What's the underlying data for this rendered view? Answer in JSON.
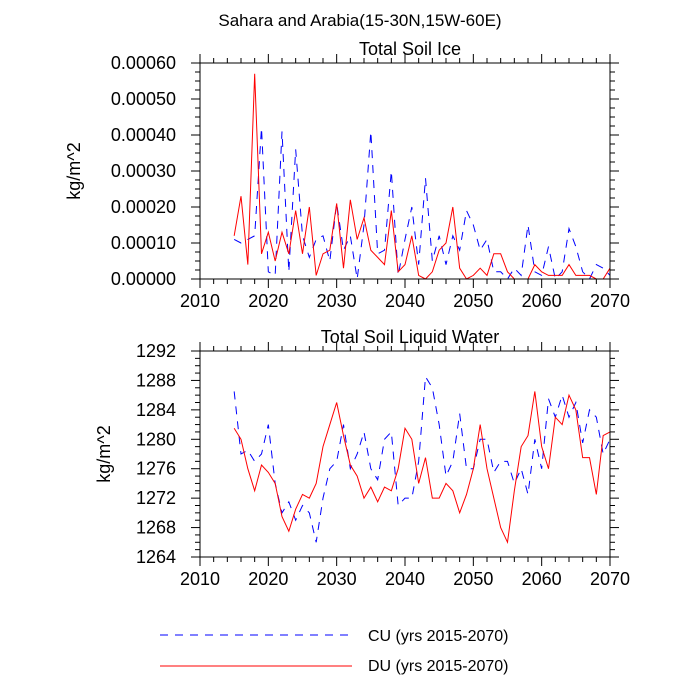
{
  "title": "Sahara and Arabia(15-30N,15W-60E)",
  "colors": {
    "CU": "#0000ff",
    "DU": "#ff0000",
    "axis": "#000000"
  },
  "legend": [
    {
      "key": "CU",
      "label": "CU (yrs 2015-2070)",
      "style": "dashed"
    },
    {
      "key": "DU",
      "label": "DU (yrs 2015-2070)",
      "style": "solid"
    }
  ],
  "chart_data": [
    {
      "type": "line",
      "title": "Total Soil Ice",
      "xlabel": "",
      "ylabel": "kg/m^2",
      "xlim": [
        2010,
        2070
      ],
      "ylim": [
        0,
        0.0006
      ],
      "xticks": [
        2010,
        2020,
        2030,
        2040,
        2050,
        2060,
        2070
      ],
      "xtick_labels": [
        "2010",
        "2020",
        "2030",
        "2040",
        "2050",
        "2060",
        "2070"
      ],
      "yticks": [
        0,
        0.0001,
        0.0002,
        0.0003,
        0.0004,
        0.0005,
        0.0006
      ],
      "ytick_labels": [
        "0.00000",
        "0.00010",
        "0.00020",
        "0.00030",
        "0.00040",
        "0.00050",
        "0.00060"
      ],
      "x": [
        2015,
        2016,
        2017,
        2018,
        2019,
        2020,
        2021,
        2022,
        2023,
        2024,
        2025,
        2026,
        2027,
        2028,
        2029,
        2030,
        2031,
        2032,
        2033,
        2034,
        2035,
        2036,
        2037,
        2038,
        2039,
        2040,
        2041,
        2042,
        2043,
        2044,
        2045,
        2046,
        2047,
        2048,
        2049,
        2050,
        2051,
        2052,
        2053,
        2054,
        2055,
        2056,
        2057,
        2058,
        2059,
        2060,
        2061,
        2062,
        2063,
        2064,
        2065,
        2066,
        2067,
        2068,
        2069,
        2070
      ],
      "series": [
        {
          "name": "CU",
          "values": [
            0.00011,
            0.0001,
            0.00011,
            0.00012,
            0.00042,
            2e-05,
            1e-05,
            0.00041,
            2e-05,
            0.00036,
            0.00012,
            6e-05,
            0.00011,
            0.00012,
            5e-05,
            0.00021,
            8e-05,
            0.00012,
            0.0,
            0.00015,
            0.00041,
            7e-05,
            8e-05,
            0.0003,
            1e-05,
            0.00011,
            0.0002,
            4e-05,
            0.00028,
            5e-05,
            0.00012,
            4e-05,
            0.00012,
            8e-05,
            0.00019,
            0.00015,
            8e-05,
            0.00011,
            2e-05,
            2e-05,
            0.0,
            3e-05,
            1e-05,
            0.00015,
            2e-05,
            1e-05,
            9e-05,
            0.0,
            2e-05,
            0.00014,
            9e-05,
            2e-05,
            0.0,
            4e-05,
            3e-05,
            1e-05
          ]
        },
        {
          "name": "DU",
          "values": [
            0.00012,
            0.00023,
            4e-05,
            0.00057,
            7e-05,
            0.00013,
            5e-05,
            0.00013,
            7e-05,
            0.00019,
            7e-05,
            0.0002,
            1e-05,
            7e-05,
            8e-05,
            0.00021,
            3e-05,
            0.00022,
            0.00011,
            0.00017,
            8e-05,
            6e-05,
            4e-05,
            0.00019,
            2e-05,
            4e-05,
            0.00012,
            1e-05,
            0.0,
            2e-05,
            8e-05,
            0.0001,
            0.0002,
            3e-05,
            0.0,
            1e-05,
            3e-05,
            1e-05,
            7e-05,
            7e-05,
            2e-05,
            0.0,
            0.0,
            0.0,
            4e-05,
            2e-05,
            1e-05,
            1e-05,
            1e-05,
            4e-05,
            1e-05,
            1e-05,
            1e-05,
            0.0,
            0.0,
            3e-05
          ]
        }
      ]
    },
    {
      "type": "line",
      "title": "Total Soil Liquid Water",
      "xlabel": "",
      "ylabel": "kg/m^2",
      "xlim": [
        2010,
        2070
      ],
      "ylim": [
        1264,
        1292
      ],
      "xticks": [
        2010,
        2020,
        2030,
        2040,
        2050,
        2060,
        2070
      ],
      "xtick_labels": [
        "2010",
        "2020",
        "2030",
        "2040",
        "2050",
        "2060",
        "2070"
      ],
      "yticks": [
        1264,
        1268,
        1272,
        1276,
        1280,
        1284,
        1288,
        1292
      ],
      "ytick_labels": [
        "1264",
        "1268",
        "1272",
        "1276",
        "1280",
        "1284",
        "1288",
        "1292"
      ],
      "x": [
        2015,
        2016,
        2017,
        2018,
        2019,
        2020,
        2021,
        2022,
        2023,
        2024,
        2025,
        2026,
        2027,
        2028,
        2029,
        2030,
        2031,
        2032,
        2033,
        2034,
        2035,
        2036,
        2037,
        2038,
        2039,
        2040,
        2041,
        2042,
        2043,
        2044,
        2045,
        2046,
        2047,
        2048,
        2049,
        2050,
        2051,
        2052,
        2053,
        2054,
        2055,
        2056,
        2057,
        2058,
        2059,
        2060,
        2061,
        2062,
        2063,
        2064,
        2065,
        2066,
        2067,
        2068,
        2069,
        2070
      ],
      "series": [
        {
          "name": "CU",
          "values": [
            1286.5,
            1278,
            1278.5,
            1277,
            1278,
            1282,
            1274,
            1270,
            1271.5,
            1269,
            1271,
            1270,
            1266,
            1272,
            1276,
            1277,
            1282,
            1276,
            1278,
            1281,
            1276,
            1274.5,
            1280,
            1281,
            1271,
            1272,
            1272,
            1277,
            1288.5,
            1287,
            1282,
            1275,
            1277,
            1283.5,
            1276,
            1276,
            1280,
            1280,
            1275.5,
            1277,
            1277,
            1274,
            1276,
            1272.5,
            1280,
            1276,
            1285.5,
            1283,
            1286,
            1283,
            1285,
            1279.5,
            1284,
            1283,
            1278,
            1280
          ]
        },
        {
          "name": "DU",
          "values": [
            1281.5,
            1280,
            1276,
            1273,
            1276.5,
            1275.5,
            1274,
            1269.5,
            1267.5,
            1270.5,
            1272.5,
            1272,
            1274,
            1279,
            1282,
            1285,
            1280.5,
            1276.5,
            1275,
            1272,
            1273.5,
            1271.5,
            1273.5,
            1273,
            1276,
            1281.5,
            1280,
            1274,
            1277.5,
            1272,
            1272,
            1274,
            1273,
            1270,
            1272.5,
            1276,
            1282,
            1276,
            1272,
            1268,
            1266,
            1273,
            1279,
            1280.5,
            1286.5,
            1279,
            1276,
            1283,
            1282,
            1286,
            1284,
            1277.5,
            1277.5,
            1272.5,
            1280.5,
            1281
          ]
        }
      ]
    }
  ]
}
